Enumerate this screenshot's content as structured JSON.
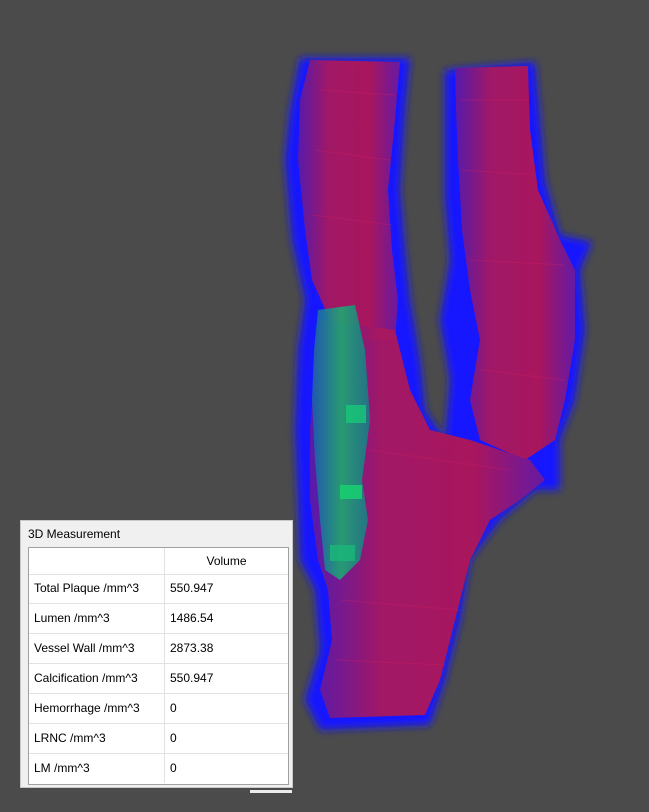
{
  "viewport": {
    "background_color": "#4b4b4b",
    "render_colors": {
      "outer_glow": "#1a1aff",
      "vessel_wall": "#a0185e",
      "plaque": "#1f9c6a"
    }
  },
  "measurement_panel": {
    "title": "3D Measurement",
    "column_header": "Volume",
    "rows": [
      {
        "label": "Total Plaque /mm^3",
        "value": "550.947"
      },
      {
        "label": "Lumen /mm^3",
        "value": "1486.54"
      },
      {
        "label": "Vessel Wall /mm^3",
        "value": "2873.38"
      },
      {
        "label": "Calcification /mm^3",
        "value": "550.947"
      },
      {
        "label": "Hemorrhage /mm^3",
        "value": "0"
      },
      {
        "label": "LRNC /mm^3",
        "value": "0"
      },
      {
        "label": "LM /mm^3",
        "value": "0"
      }
    ]
  }
}
